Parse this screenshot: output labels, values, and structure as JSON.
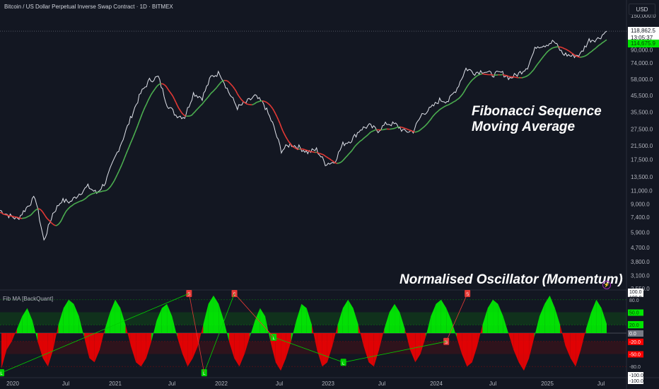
{
  "header": {
    "title": "Bitcoin / US Dollar Perpetual Inverse Swap Contract · 1D · BITMEX"
  },
  "currency_button": "USD",
  "indicator_label": "Fib MA [BackQuant]",
  "annotations": {
    "main": [
      "Fibonacci Sequence",
      "Moving Average"
    ],
    "oscillator": "Normalised Oscillator (Momentum)"
  },
  "price_badges": {
    "last": "118,862.5",
    "countdown": "13:05:37",
    "ma": "114,675.9"
  },
  "colors": {
    "bg": "#131722",
    "up": "#00ff00",
    "down": "#ff0000",
    "ma_up": "#4caf50",
    "ma_down": "#e53935"
  },
  "chart_data": [
    {
      "type": "line",
      "scale": "log",
      "y_ticks": [
        "150,000.0",
        "118,862.5",
        "90,000.0",
        "74,000.0",
        "58,000.0",
        "45,500.0",
        "35,500.0",
        "27,500.0",
        "21,500.0",
        "17,500.0",
        "13,500.0",
        "11,000.0",
        "9,000.0",
        "7,400.0",
        "5,900.0",
        "4,700.0",
        "3,800.0",
        "3,100.0",
        "2,550.0"
      ],
      "y_tick_values": [
        150000,
        118862.5,
        90000,
        74000,
        58000,
        45500,
        35500,
        27500,
        21500,
        17500,
        13500,
        11000,
        9000,
        7400,
        5900,
        4700,
        3800,
        3100,
        2550
      ],
      "ylim": [
        2550,
        150000
      ],
      "x_ticks": [
        "2020",
        "Jul",
        "2021",
        "Jul",
        "2022",
        "Jul",
        "2023",
        "Jul",
        "2024",
        "Jul",
        "2025",
        "Jul"
      ],
      "series": [
        {
          "x": [
            "2019-10",
            "2019-11",
            "2019-12",
            "2020-01",
            "2020-02",
            "2020-03",
            "2020-04",
            "2020-05",
            "2020-06",
            "2020-07",
            "2020-08",
            "2020-09",
            "2020-10",
            "2020-11",
            "2020-12",
            "2021-01",
            "2021-02",
            "2021-03",
            "2021-04",
            "2021-05",
            "2021-06",
            "2021-07",
            "2021-08",
            "2021-09",
            "2021-10",
            "2021-11",
            "2021-12",
            "2022-01",
            "2022-02",
            "2022-03",
            "2022-04",
            "2022-05",
            "2022-06",
            "2022-07",
            "2022-08",
            "2022-09",
            "2022-10",
            "2022-11",
            "2022-12",
            "2023-01",
            "2023-02",
            "2023-03",
            "2023-04",
            "2023-05",
            "2023-06",
            "2023-07",
            "2023-08",
            "2023-09",
            "2023-10",
            "2023-11",
            "2023-12",
            "2024-01",
            "2024-02",
            "2024-03",
            "2024-04",
            "2024-05",
            "2024-06",
            "2024-07",
            "2024-08",
            "2024-09",
            "2024-10",
            "2024-11",
            "2024-12",
            "2025-01",
            "2025-02",
            "2025-03",
            "2025-04",
            "2025-05",
            "2025-06",
            "2025-07"
          ],
          "values": [
            8200,
            7600,
            7200,
            8500,
            10000,
            5200,
            7800,
            9500,
            9300,
            10500,
            11700,
            10600,
            12500,
            17500,
            24000,
            34000,
            47000,
            57000,
            60000,
            40000,
            34000,
            33000,
            47000,
            44000,
            60000,
            64000,
            48000,
            38000,
            41000,
            45000,
            40000,
            30000,
            20000,
            22000,
            21000,
            19500,
            20300,
            16500,
            16800,
            22000,
            23500,
            27500,
            29000,
            27000,
            30000,
            29500,
            26500,
            26800,
            34500,
            37500,
            42500,
            42000,
            51000,
            68000,
            64000,
            66000,
            62000,
            64000,
            59000,
            63000,
            70000,
            95000,
            97000,
            102000,
            85000,
            82000,
            84000,
            104000,
            106000,
            118862.5
          ]
        }
      ]
    },
    {
      "type": "area",
      "ylim": [
        -100,
        100
      ],
      "y_ticks": [
        "100.0",
        "100.0",
        "80.0",
        "50.0",
        "22.1",
        "20.0",
        "0.0",
        "-20.0",
        "-50.0",
        "-80.0",
        "-100.0",
        "-100.0"
      ],
      "y_tick_values": [
        100,
        100,
        80,
        50,
        22.1,
        20,
        0,
        -20,
        -50,
        -80,
        -100,
        -100
      ],
      "levels": [
        80,
        20,
        0,
        -20,
        -80
      ],
      "current": 22.1,
      "values": [
        -85,
        -40,
        -20,
        10,
        40,
        60,
        30,
        -20,
        -60,
        -80,
        -40,
        20,
        60,
        80,
        70,
        40,
        -10,
        -60,
        -70,
        -40,
        10,
        50,
        80,
        60,
        20,
        -30,
        -70,
        -80,
        -60,
        -20,
        30,
        60,
        70,
        40,
        -10,
        -50,
        -80,
        -60,
        -30,
        20,
        70,
        90,
        70,
        30,
        -20,
        -60,
        -80,
        -50,
        -10,
        30,
        60,
        40,
        -20,
        -70,
        -90,
        -60,
        -20,
        30,
        70,
        60,
        20,
        -40,
        -80,
        -70,
        -30,
        20,
        60,
        80,
        60,
        20,
        -30,
        -70,
        -80,
        -40,
        10,
        50,
        70,
        50,
        10,
        -40,
        -70,
        -50,
        -10,
        40,
        70,
        80,
        60,
        30,
        -10,
        -50,
        -80,
        -70,
        -30,
        20,
        60,
        80,
        70,
        40,
        0,
        -40,
        -70,
        -90,
        -60,
        -10,
        40,
        70,
        90,
        60,
        20,
        -30,
        -60,
        -80,
        -40,
        10,
        50,
        80,
        60,
        22.1
      ],
      "signals": [
        {
          "label": "L",
          "type": "long",
          "x": 0.0,
          "y": -95
        },
        {
          "label": "S",
          "type": "short",
          "x": 0.31,
          "y": 95
        },
        {
          "label": "L",
          "type": "long",
          "x": 0.335,
          "y": -95
        },
        {
          "label": "S",
          "type": "short",
          "x": 0.385,
          "y": 95
        },
        {
          "label": "L",
          "type": "long",
          "x": 0.45,
          "y": -10
        },
        {
          "label": "L",
          "type": "long",
          "x": 0.565,
          "y": -70
        },
        {
          "label": "S",
          "type": "short",
          "x": 0.735,
          "y": -20
        },
        {
          "label": "S",
          "type": "short",
          "x": 0.77,
          "y": 95
        }
      ]
    }
  ]
}
